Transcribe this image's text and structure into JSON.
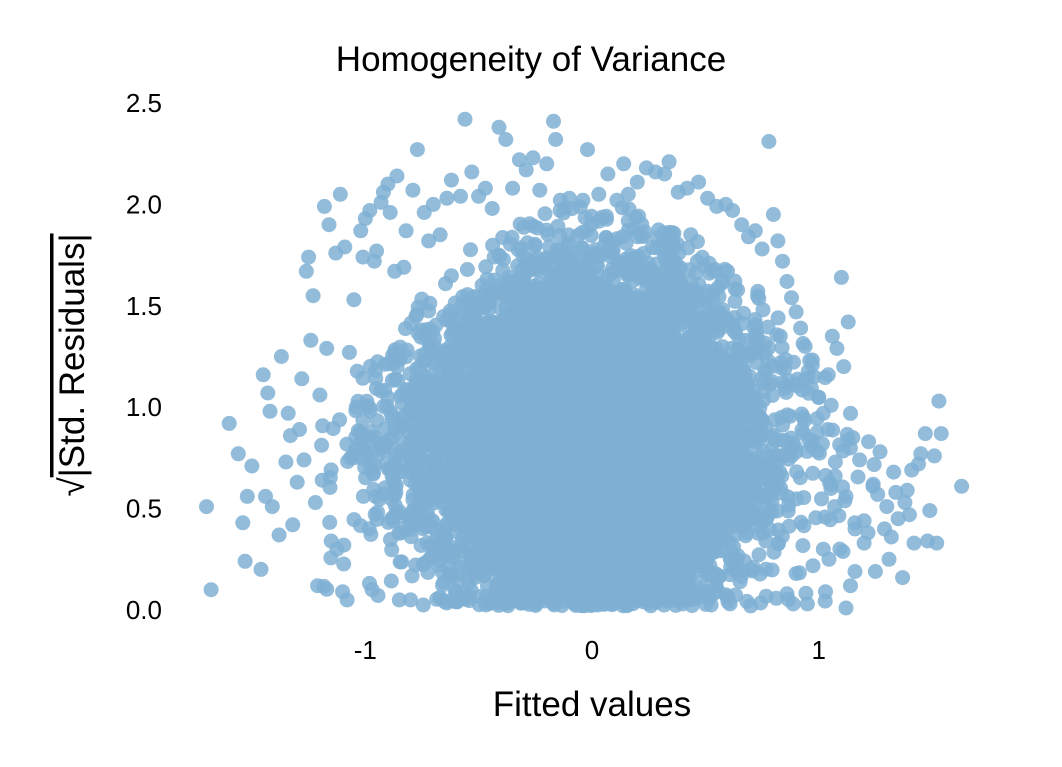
{
  "chart_data": {
    "type": "scatter",
    "title": "Homogeneity of Variance",
    "xlabel": "Fitted values",
    "ylabel": "Std. Residuals",
    "ylabel_symbol": "√",
    "xlim": [
      -1.72,
      1.72
    ],
    "ylim": [
      0.0,
      2.5
    ],
    "xticks": [
      {
        "value": -1,
        "label": "-1"
      },
      {
        "value": 0,
        "label": "0"
      },
      {
        "value": 1,
        "label": "1"
      }
    ],
    "yticks": [
      {
        "value": 0.0,
        "label": "0.0"
      },
      {
        "value": 0.5,
        "label": "0.5"
      },
      {
        "value": 1.0,
        "label": "1.0"
      },
      {
        "value": 1.5,
        "label": "1.5"
      },
      {
        "value": 2.0,
        "label": "2.0"
      },
      {
        "value": 2.5,
        "label": "2.5"
      }
    ],
    "grid": false,
    "point_color": "#7fb0d3",
    "points": [
      [
        -1.7,
        0.51
      ],
      [
        -1.68,
        0.1
      ],
      [
        -1.6,
        0.92
      ],
      [
        -1.56,
        0.77
      ],
      [
        -1.54,
        0.43
      ],
      [
        -1.53,
        0.24
      ],
      [
        -1.52,
        0.56
      ],
      [
        -1.5,
        0.71
      ],
      [
        -1.46,
        0.2
      ],
      [
        -1.45,
        1.16
      ],
      [
        -1.44,
        0.56
      ],
      [
        -1.43,
        1.07
      ],
      [
        -1.42,
        0.98
      ],
      [
        -1.41,
        0.51
      ],
      [
        -1.38,
        0.37
      ],
      [
        -1.37,
        1.25
      ],
      [
        -1.35,
        0.73
      ],
      [
        -1.34,
        0.97
      ],
      [
        -1.33,
        0.86
      ],
      [
        -1.32,
        0.42
      ],
      [
        -1.3,
        0.63
      ],
      [
        -1.29,
        0.89
      ],
      [
        -1.28,
        1.14
      ],
      [
        -1.27,
        0.74
      ],
      [
        -1.26,
        1.67
      ],
      [
        -1.25,
        1.74
      ],
      [
        -1.24,
        1.33
      ],
      [
        -1.23,
        1.55
      ],
      [
        -1.22,
        0.53
      ],
      [
        -1.21,
        0.12
      ],
      [
        -1.2,
        1.06
      ],
      [
        -1.19,
        0.64
      ],
      [
        -1.18,
        1.99
      ],
      [
        -1.17,
        1.29
      ],
      [
        -1.16,
        1.9
      ],
      [
        -1.15,
        0.34
      ],
      [
        -1.13,
        1.76
      ],
      [
        -1.11,
        2.05
      ],
      [
        -1.1,
        0.09
      ],
      [
        -1.09,
        1.79
      ],
      [
        -1.08,
        0.05
      ],
      [
        -1.07,
        1.27
      ],
      [
        -1.05,
        1.53
      ],
      [
        -1.04,
        1.0
      ],
      [
        -1.02,
        1.87
      ],
      [
        -1.01,
        1.74
      ],
      [
        -1.0,
        1.93
      ],
      [
        -0.98,
        1.97
      ],
      [
        -0.97,
        0.1
      ],
      [
        -0.96,
        1.72
      ],
      [
        -0.95,
        1.77
      ],
      [
        -0.93,
        2.01
      ],
      [
        -0.92,
        2.06
      ],
      [
        -0.9,
        2.1
      ],
      [
        -0.89,
        1.96
      ],
      [
        -0.87,
        1.67
      ],
      [
        -0.86,
        2.14
      ],
      [
        -0.85,
        0.05
      ],
      [
        -0.83,
        1.69
      ],
      [
        -0.82,
        1.87
      ],
      [
        -0.79,
        2.07
      ],
      [
        -0.77,
        2.27
      ],
      [
        -0.74,
        1.96
      ],
      [
        -0.72,
        1.82
      ],
      [
        -0.7,
        2.0
      ],
      [
        -0.67,
        1.85
      ],
      [
        -0.64,
        2.03
      ],
      [
        -0.62,
        2.12
      ],
      [
        -0.58,
        2.04
      ],
      [
        -0.56,
        2.42
      ],
      [
        -0.53,
        2.16
      ],
      [
        -0.5,
        2.04
      ],
      [
        -0.47,
        2.08
      ],
      [
        -0.44,
        1.98
      ],
      [
        -0.41,
        2.38
      ],
      [
        -0.38,
        2.32
      ],
      [
        -0.35,
        2.08
      ],
      [
        -0.32,
        2.22
      ],
      [
        -0.29,
        2.17
      ],
      [
        -0.26,
        2.23
      ],
      [
        -0.23,
        2.07
      ],
      [
        -0.2,
        2.2
      ],
      [
        -0.17,
        2.41
      ],
      [
        -0.16,
        2.32
      ],
      [
        -0.14,
        2.02
      ],
      [
        -0.1,
        2.03
      ],
      [
        -0.04,
        2.02
      ],
      [
        -0.02,
        2.27
      ],
      [
        0.03,
        2.05
      ],
      [
        0.07,
        2.15
      ],
      [
        0.11,
        2.02
      ],
      [
        0.14,
        2.2
      ],
      [
        0.16,
        2.05
      ],
      [
        0.2,
        2.11
      ],
      [
        0.24,
        2.18
      ],
      [
        0.28,
        2.16
      ],
      [
        0.32,
        2.15
      ],
      [
        0.34,
        2.21
      ],
      [
        0.38,
        2.06
      ],
      [
        0.42,
        2.08
      ],
      [
        0.47,
        2.11
      ],
      [
        0.51,
        2.03
      ],
      [
        0.55,
        1.99
      ],
      [
        0.59,
        2.0
      ],
      [
        0.62,
        1.97
      ],
      [
        0.66,
        1.9
      ],
      [
        0.69,
        1.84
      ],
      [
        0.72,
        1.87
      ],
      [
        0.75,
        1.78
      ],
      [
        0.78,
        2.31
      ],
      [
        0.8,
        1.95
      ],
      [
        0.82,
        1.82
      ],
      [
        0.84,
        1.72
      ],
      [
        0.86,
        1.62
      ],
      [
        0.88,
        1.54
      ],
      [
        0.9,
        1.47
      ],
      [
        0.92,
        1.39
      ],
      [
        0.94,
        1.3
      ],
      [
        0.96,
        1.23
      ],
      [
        0.98,
        1.15
      ],
      [
        1.0,
        1.05
      ],
      [
        1.02,
        0.97
      ],
      [
        1.04,
        0.89
      ],
      [
        1.06,
        1.35
      ],
      [
        1.08,
        1.29
      ],
      [
        1.1,
        1.64
      ],
      [
        1.11,
        1.2
      ],
      [
        1.12,
        0.01
      ],
      [
        1.13,
        1.42
      ],
      [
        1.14,
        0.12
      ],
      [
        1.15,
        0.85
      ],
      [
        1.16,
        0.19
      ],
      [
        1.18,
        0.74
      ],
      [
        1.2,
        0.44
      ],
      [
        1.22,
        0.83
      ],
      [
        1.24,
        0.62
      ],
      [
        1.25,
        0.19
      ],
      [
        1.26,
        0.57
      ],
      [
        1.27,
        0.78
      ],
      [
        1.29,
        0.4
      ],
      [
        1.3,
        0.51
      ],
      [
        1.31,
        0.25
      ],
      [
        1.32,
        0.36
      ],
      [
        1.33,
        0.68
      ],
      [
        1.34,
        0.58
      ],
      [
        1.35,
        0.45
      ],
      [
        1.37,
        0.16
      ],
      [
        1.38,
        0.53
      ],
      [
        1.39,
        0.59
      ],
      [
        1.4,
        0.47
      ],
      [
        1.41,
        0.69
      ],
      [
        1.42,
        0.33
      ],
      [
        1.44,
        0.72
      ],
      [
        1.45,
        0.77
      ],
      [
        1.47,
        0.87
      ],
      [
        1.48,
        0.34
      ],
      [
        1.49,
        0.49
      ],
      [
        1.51,
        0.76
      ],
      [
        1.52,
        0.33
      ],
      [
        1.53,
        1.03
      ],
      [
        1.54,
        0.87
      ],
      [
        1.63,
        0.61
      ],
      [
        0.9,
        0.18
      ],
      [
        0.95,
        0.03
      ],
      [
        1.03,
        0.09
      ],
      [
        0.7,
        0.02
      ],
      [
        0.86,
        0.08
      ],
      [
        1.16,
        0.4
      ],
      [
        -0.8,
        0.05
      ],
      [
        -0.6,
        0.04
      ],
      [
        0.4,
        0.03
      ],
      [
        0.6,
        0.04
      ],
      [
        1.02,
        0.3
      ],
      [
        1.07,
        0.51
      ],
      [
        1.12,
        0.56
      ],
      [
        1.2,
        0.33
      ]
    ],
    "cloud": {
      "count": 9000,
      "x_mean": 0.0,
      "x_sd": 0.38,
      "y_mean": 0.84,
      "y_sd": 0.48
    }
  }
}
